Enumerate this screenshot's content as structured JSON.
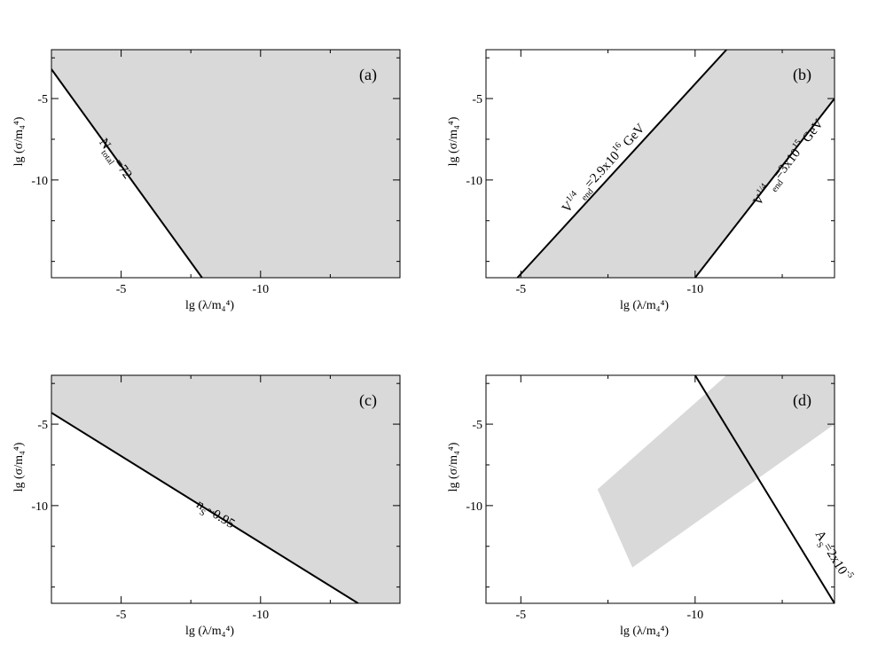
{
  "chart_data": [
    {
      "panel": "(a)",
      "type": "area",
      "xlabel": "lg (λ/m₄⁴)",
      "ylabel": "lg (σ/m₄⁴)",
      "xlim": [
        -2.5,
        -15.0
      ],
      "ylim": [
        -16.0,
        -2.0
      ],
      "xticks": [
        -5,
        -10
      ],
      "yticks": [
        -5,
        -10
      ],
      "shaded_polygon": [
        [
          -2.5,
          -3.2
        ],
        [
          -7.9,
          -16.0
        ],
        [
          -15.0,
          -16.0
        ],
        [
          -15.0,
          -2.0
        ],
        [
          -2.5,
          -2.0
        ]
      ],
      "boundary": {
        "label_main": "N",
        "label_sub": "total",
        "label_rest": "=72",
        "points": [
          [
            -2.5,
            -3.2
          ],
          [
            -7.9,
            -16.0
          ]
        ]
      }
    },
    {
      "panel": "(b)",
      "type": "area",
      "xlabel": "lg (λ/m₄⁴)",
      "ylabel": "lg (σ/m₄⁴)",
      "xlim": [
        -4.0,
        -14.0
      ],
      "ylim": [
        -16.0,
        -2.0
      ],
      "xticks": [
        -5,
        -10
      ],
      "yticks": [
        -5,
        -10
      ],
      "shaded_polygon": [
        [
          -4.9,
          -16.0
        ],
        [
          -10.9,
          -2.0
        ],
        [
          -14.0,
          -2.0
        ],
        [
          -14.0,
          -5.0
        ],
        [
          -10.0,
          -16.0
        ]
      ],
      "boundaries": [
        {
          "label_main": "V",
          "label_sup": "1/4",
          "label_sub": "end",
          "label_rest": "=2.9x10",
          "label_exp": "16",
          "label_unit": " GeV",
          "points": [
            [
              -4.9,
              -16.0
            ],
            [
              -10.9,
              -2.0
            ]
          ]
        },
        {
          "label_main": "V",
          "label_sup": "1/4",
          "label_sub": "end",
          "label_rest": "=3x10",
          "label_exp": "15",
          "label_unit": " GeV",
          "points": [
            [
              -10.0,
              -16.0
            ],
            [
              -14.0,
              -5.0
            ]
          ]
        }
      ]
    },
    {
      "panel": "(c)",
      "type": "area",
      "xlabel": "lg (λ/m₄⁴)",
      "ylabel": "lg (σ/m₄⁴)",
      "xlim": [
        -2.5,
        -15.0
      ],
      "ylim": [
        -16.0,
        -2.0
      ],
      "xticks": [
        -5,
        -10
      ],
      "yticks": [
        -5,
        -10
      ],
      "shaded_polygon": [
        [
          -2.5,
          -4.3
        ],
        [
          -13.5,
          -16.0
        ],
        [
          -15.0,
          -16.0
        ],
        [
          -15.0,
          -2.0
        ],
        [
          -2.5,
          -2.0
        ]
      ],
      "boundary": {
        "label_main": "n",
        "label_sub": "S",
        "label_rest": "~0.95",
        "points": [
          [
            -2.5,
            -4.3
          ],
          [
            -13.5,
            -16.0
          ]
        ]
      }
    },
    {
      "panel": "(d)",
      "type": "area",
      "xlabel": "lg (λ/m₄⁴)",
      "ylabel": "lg (σ/m₄⁴)",
      "xlim": [
        -4.0,
        -14.0
      ],
      "ylim": [
        -16.0,
        -2.0
      ],
      "xticks": [
        -5,
        -10
      ],
      "yticks": [
        -5,
        -10
      ],
      "shaded_polygon": [
        [
          -10.9,
          -2.0
        ],
        [
          -14.0,
          -2.0
        ],
        [
          -14.0,
          -5.0
        ],
        [
          -8.2,
          -13.8
        ],
        [
          -7.2,
          -9.0
        ]
      ],
      "boundary": {
        "label_main": "A",
        "label_sub": "S",
        "label_rest": "=2x10",
        "label_exp": "-5",
        "points": [
          [
            -10.0,
            -2.0
          ],
          [
            -14.0,
            -16.0
          ]
        ]
      }
    }
  ],
  "colors": {
    "shade": "#d9d9d9",
    "line": "#000000",
    "frame": "#000000"
  }
}
